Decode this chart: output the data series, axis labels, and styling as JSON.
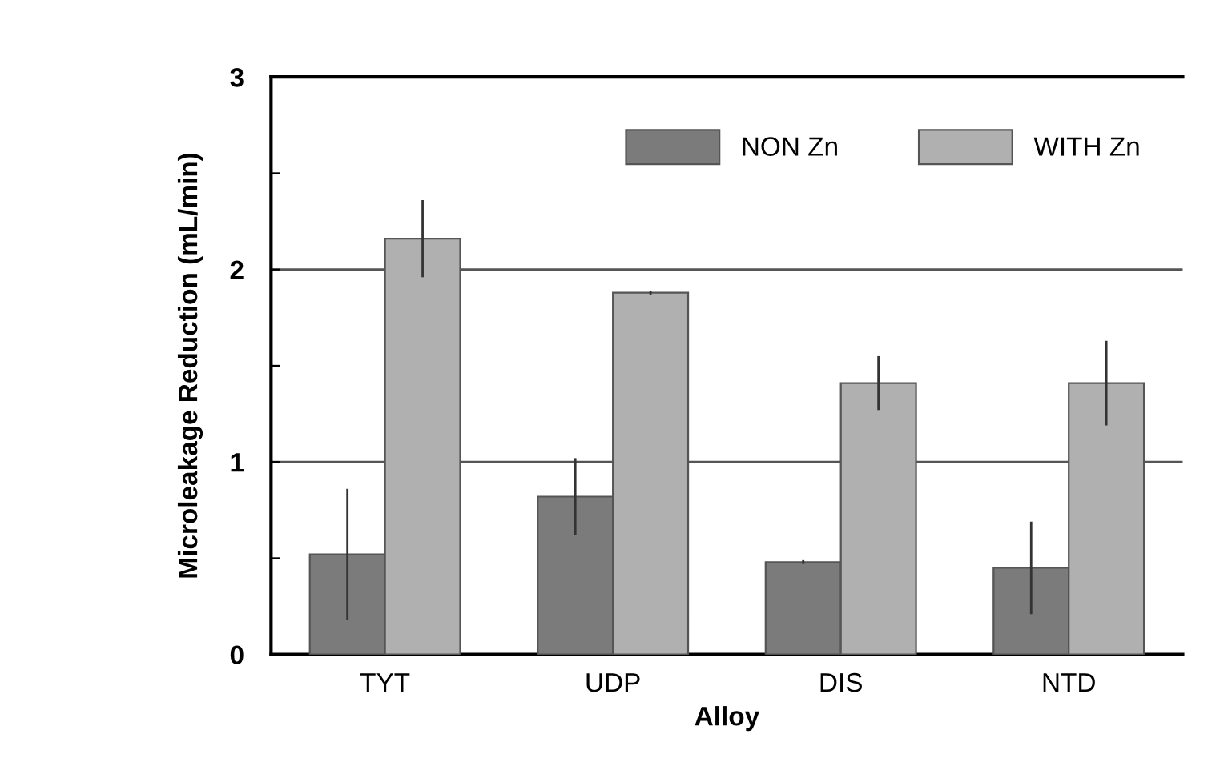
{
  "chart_data": {
    "type": "bar",
    "xlabel": "Alloy",
    "ylabel": "Microleakage Reduction (mL/min)",
    "categories": [
      "TYT",
      "UDP",
      "DIS",
      "NTD"
    ],
    "series": [
      {
        "name": "NON Zn",
        "color": "#7b7b7b",
        "values": [
          0.52,
          0.82,
          0.48,
          0.45
        ],
        "errors": [
          0.34,
          0.2,
          0.01,
          0.24
        ]
      },
      {
        "name": "WITH Zn",
        "color": "#b0b0b0",
        "values": [
          2.16,
          1.88,
          1.41,
          1.41
        ],
        "errors": [
          0.2,
          0.01,
          0.14,
          0.22
        ]
      }
    ],
    "ylim": [
      0,
      3
    ],
    "yticks": [
      0,
      {
        "value": 0.5,
        "label": null
      },
      1,
      {
        "value": 1.5,
        "label": null
      },
      2,
      {
        "value": 2.5,
        "label": null
      },
      3
    ],
    "grid": "y",
    "legend": "top right"
  }
}
